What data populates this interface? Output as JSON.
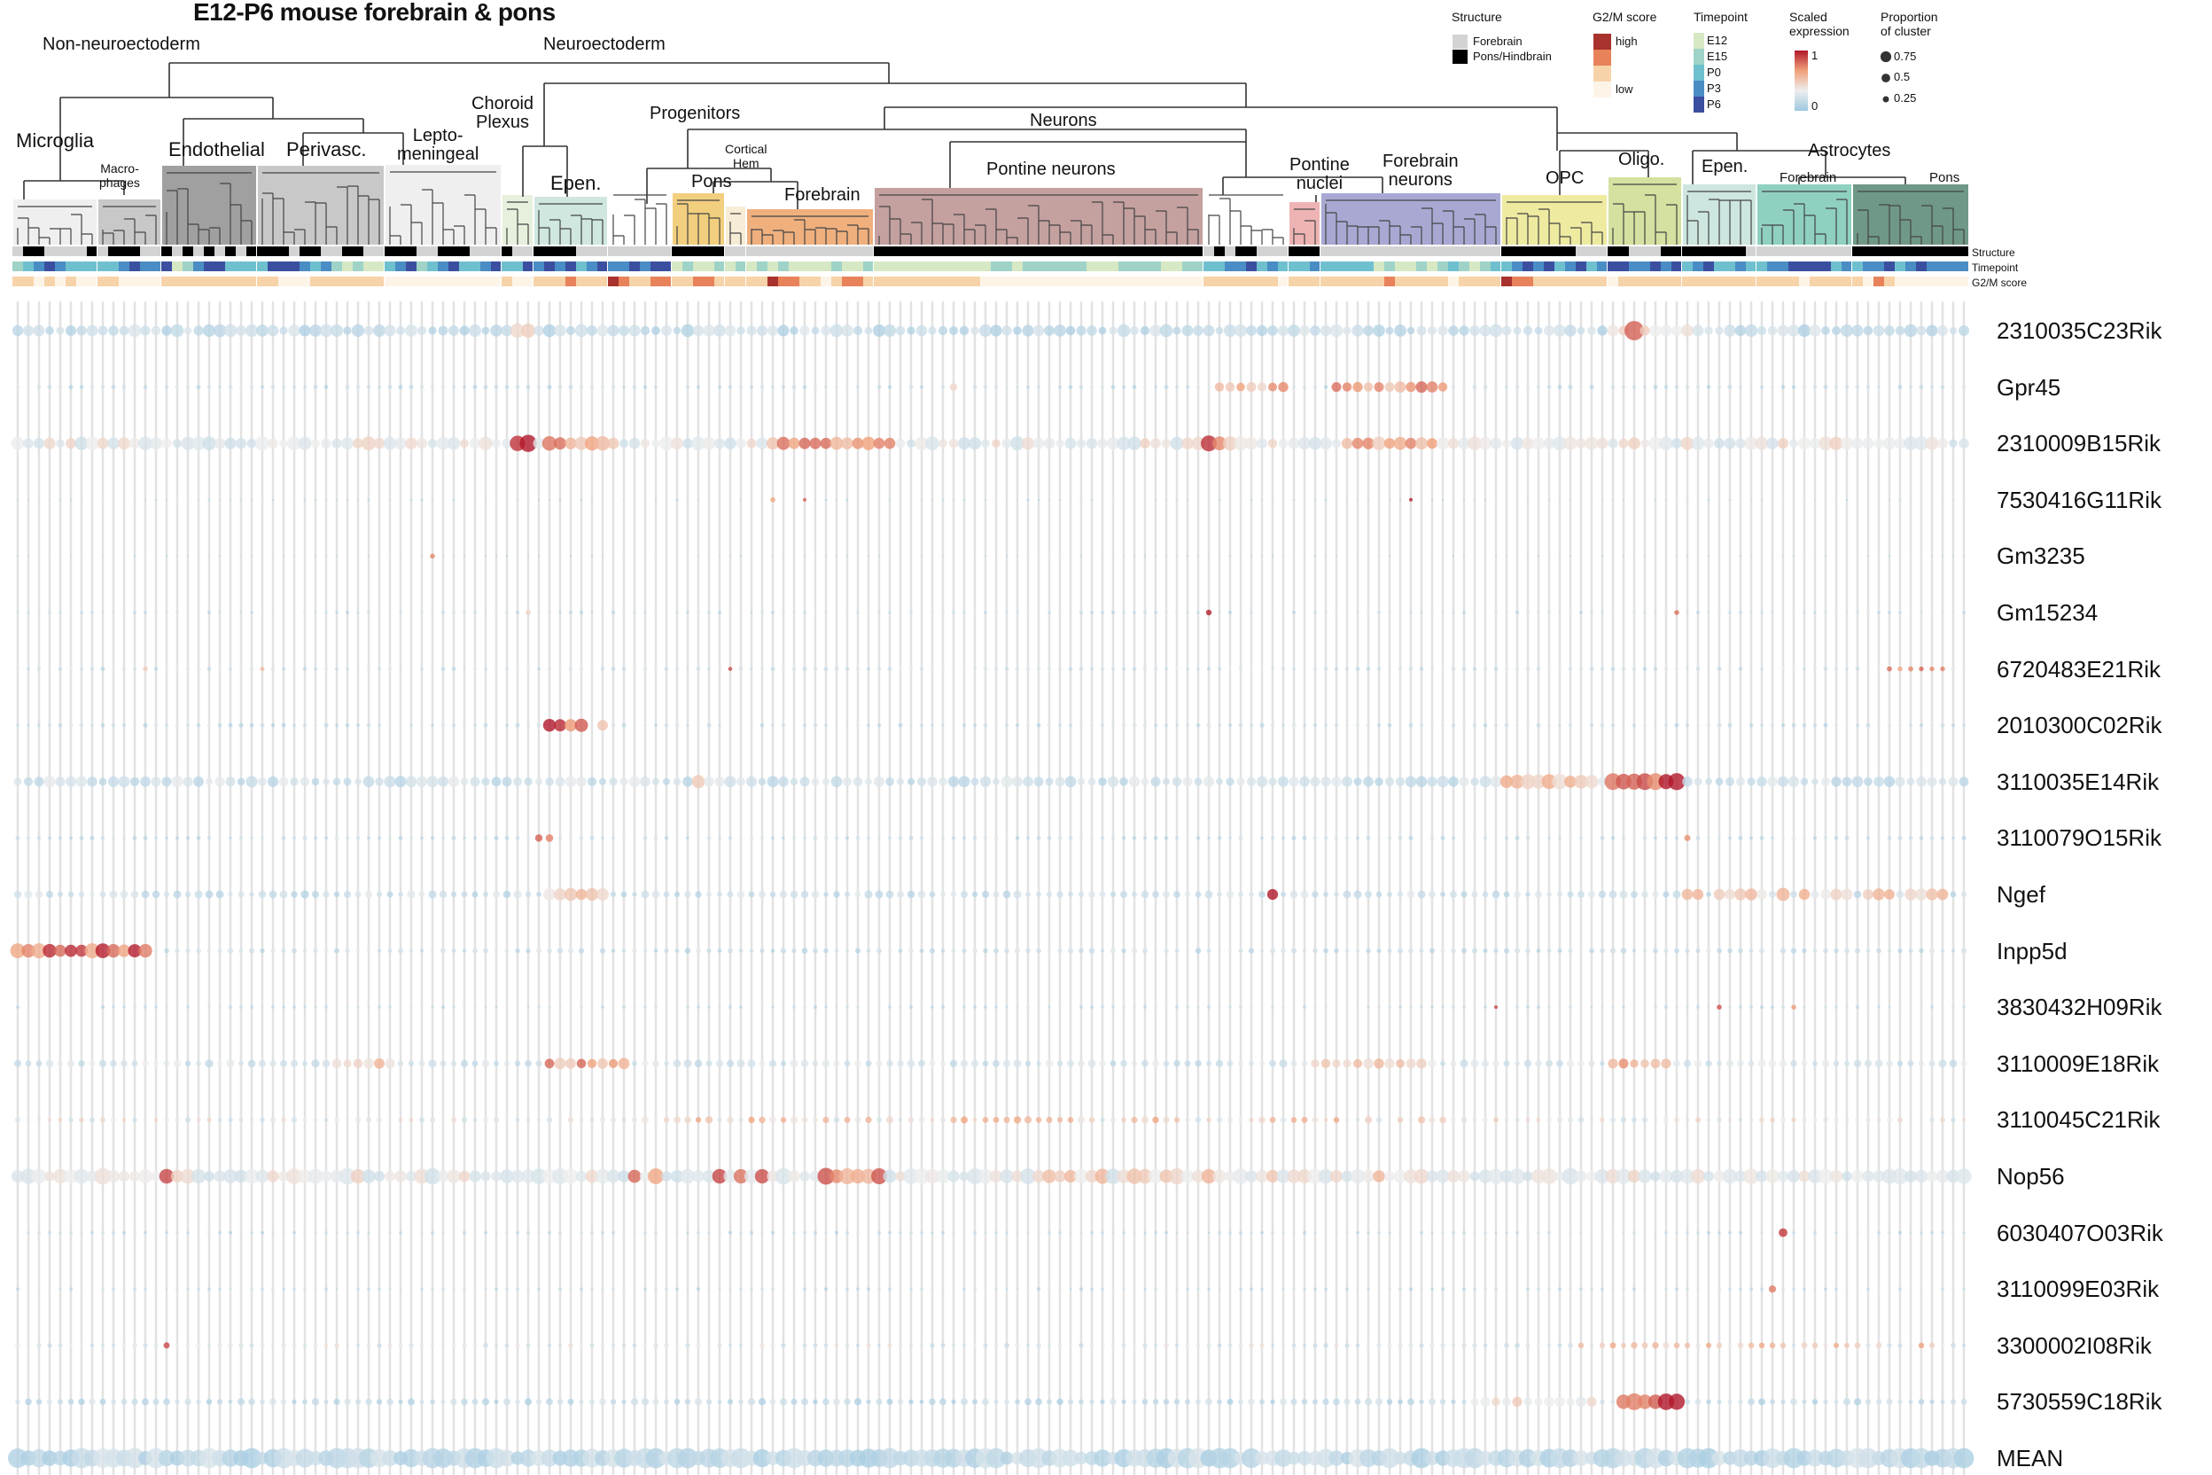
{
  "chart_data": {
    "type": "dot-heatmap",
    "title": "E12-P6 mouse forebrain & pons",
    "top_groups": [
      "Non-neuroectoderm",
      "Neuroectoderm"
    ],
    "mid_groups": {
      "progenitors": "Progenitors",
      "neurons": "Neurons",
      "astrocytes": "Astrocytes"
    },
    "clusters": [
      {
        "label": "Microglia",
        "color": "#efefef",
        "n": 8,
        "structure": "FPPFFFFP",
        "timepoint": "12343222",
        "g2m": "11010100"
      },
      {
        "label": "Macro-\nphages",
        "color": "#c8c8c8",
        "n": 6,
        "structure": "FPPPFF",
        "timepoint": "223433",
        "g2m": "110000"
      },
      {
        "label": "Endothelial",
        "color": "#a0a0a0",
        "n": 9,
        "structure": "PFPFPFPFP",
        "timepoint": "401344222",
        "g2m": "111111111"
      },
      {
        "label": "Perivasc.",
        "color": "#c8c8c8",
        "n": 12,
        "structure": "PPPFPPFFPPFF",
        "timepoint": "244432310100",
        "g2m": "110001111111"
      },
      {
        "label": "Lepto-\nmeningeal",
        "color": "#efefef",
        "n": 11,
        "structure": "PPPFFPPPFFF",
        "timepoint": "23412342234",
        "g2m": "00000000000"
      },
      {
        "label": "Choroid\nPlexus",
        "color": "#e6f0dc",
        "n": 3,
        "structure": "PFF",
        "timepoint": "224",
        "g2m": "100"
      },
      {
        "label": "Epen.",
        "color": "#cfe7df",
        "n": 7,
        "structure": "PPPPFFF",
        "timepoint": "3434234",
        "g2m": "1112111"
      },
      {
        "label": "",
        "color": "",
        "n": 6,
        "structure": "FFFFFF",
        "timepoint": "334344",
        "g2m": "321122"
      },
      {
        "label": "Pons",
        "color": "#f2cf7e",
        "n": 5,
        "structure": "PPPPP",
        "timepoint": "01001",
        "g2m": "11221"
      },
      {
        "label": "Cortical\nHem",
        "color": "#f7ecd6",
        "n": 2,
        "structure": "FF",
        "timepoint": "01",
        "g2m": "11"
      },
      {
        "label": "Forebrain",
        "color": "#efb07e",
        "n": 12,
        "structure": "FFFFFFFFFFFF",
        "timepoint": "010100001001",
        "g2m": "113221101221"
      },
      {
        "label": "Pontine neurons",
        "color": "#c4a09f",
        "n": 31,
        "structure": "PPPPPPPPPPPPPPPPPPPPPPPPPPPPPPP",
        "timepoint": "0000000000011011111100011110011",
        "g2m": "1111111111000000000000000000000"
      },
      {
        "label": "",
        "color": "",
        "n": 8,
        "structure": "FPFPPFFF",
        "timepoint": "22334232",
        "g2m": "11111110"
      },
      {
        "label": "Pontine\nnuclei",
        "color": "#eeb4b4",
        "n": 3,
        "structure": "PPP",
        "timepoint": "223",
        "g2m": "111"
      },
      {
        "label": "Forebrain\nneurons",
        "color": "#a8a8d3",
        "n": 17,
        "structure": "FFFFFFFFFFFFFFFFF",
        "timepoint": "22222010010121012",
        "g2m": "11111121111101111"
      },
      {
        "label": "OPC",
        "color": "#eeeaa0",
        "n": 10,
        "structure": "PPPPPPPFFF",
        "timepoint": "2343423423",
        "g2m": "3221111111"
      },
      {
        "label": "Oligo.",
        "color": "#d4e1a0",
        "n": 7,
        "structure": "PPFFFPP",
        "timepoint": "4433434",
        "g2m": "0111111"
      },
      {
        "label": "Epen.",
        "color": "#cde6df",
        "n": 7,
        "structure": "PPPPPPF",
        "timepoint": "2342232",
        "g2m": "1111111"
      },
      {
        "label": "Forebrain",
        "color": "#8fd0c0",
        "n": 9,
        "structure": "FFFFFFFFF",
        "timepoint": "233444423",
        "g2m": "111101111"
      },
      {
        "label": "Pons",
        "color": "#6f9887",
        "n": 11,
        "structure": "PPPPPPPPPPP",
        "timepoint": "23342343333",
        "g2m": "10210000000"
      }
    ],
    "annotation_rows": [
      "Structure",
      "Timepoint",
      "G2/M score"
    ],
    "genes": [
      {
        "name": "2310035C23Rik",
        "base": [
          0.25,
          0.25
        ],
        "spots": [
          [
            47,
            48,
            0.6,
            0.45
          ],
          [
            150,
            157,
            0.55,
            0.3
          ],
          [
            152,
            152,
            0.95,
            0.7
          ]
        ]
      },
      {
        "name": "Gpr45",
        "base": [
          0.3,
          0.03
        ],
        "spots": [
          [
            124,
            134,
            0.75,
            0.25
          ],
          [
            88,
            88,
            0.7,
            0.15
          ],
          [
            113,
            119,
            0.7,
            0.2
          ]
        ]
      },
      {
        "name": "2310009B15Rik",
        "base": [
          0.45,
          0.3
        ],
        "spots": [
          [
            47,
            48,
            0.95,
            0.6
          ],
          [
            50,
            56,
            0.75,
            0.4
          ],
          [
            71,
            82,
            0.75,
            0.35
          ],
          [
            112,
            113,
            0.85,
            0.5
          ],
          [
            125,
            133,
            0.7,
            0.35
          ]
        ]
      },
      {
        "name": "7530416G11Rik",
        "base": [
          0.3,
          0.01
        ],
        "spots": [
          [
            71,
            71,
            0.9,
            0.05
          ],
          [
            74,
            74,
            0.9,
            0.04
          ],
          [
            131,
            131,
            0.9,
            0.04
          ]
        ]
      },
      {
        "name": "Gm3235",
        "base": [
          0.3,
          0.005
        ],
        "spots": [
          [
            39,
            39,
            0.95,
            0.05
          ]
        ]
      },
      {
        "name": "Gm15234",
        "base": [
          0.3,
          0.02
        ],
        "spots": [
          [
            48,
            48,
            0.7,
            0.05
          ],
          [
            112,
            112,
            0.9,
            0.08
          ],
          [
            156,
            156,
            0.9,
            0.07
          ]
        ]
      },
      {
        "name": "6720483E21Rik",
        "base": [
          0.35,
          0.03
        ],
        "spots": [
          [
            12,
            12,
            0.7,
            0.05
          ],
          [
            23,
            23,
            0.8,
            0.04
          ],
          [
            67,
            67,
            0.8,
            0.05
          ],
          [
            176,
            181,
            0.75,
            0.06
          ]
        ]
      },
      {
        "name": "2010300C02Rik",
        "base": [
          0.3,
          0.03
        ],
        "spots": [
          [
            50,
            53,
            0.9,
            0.35
          ],
          [
            55,
            55,
            0.6,
            0.3
          ]
        ]
      },
      {
        "name": "3110035E14Rik",
        "base": [
          0.3,
          0.2
        ],
        "spots": [
          [
            64,
            64,
            0.7,
            0.45
          ],
          [
            140,
            148,
            0.65,
            0.45
          ],
          [
            150,
            156,
            0.95,
            0.55
          ]
        ]
      },
      {
        "name": "3110079O15Rik",
        "base": [
          0.3,
          0.03
        ],
        "spots": [
          [
            49,
            49,
            0.8,
            0.1
          ],
          [
            50,
            50,
            0.95,
            0.15
          ],
          [
            157,
            157,
            0.85,
            0.1
          ]
        ]
      },
      {
        "name": "Ngef",
        "base": [
          0.3,
          0.1
        ],
        "spots": [
          [
            50,
            55,
            0.65,
            0.35
          ],
          [
            118,
            118,
            0.95,
            0.35
          ],
          [
            157,
            181,
            0.62,
            0.3
          ],
          [
            166,
            166,
            0.85,
            0.35
          ]
        ]
      },
      {
        "name": "Inpp5d",
        "base": [
          0.3,
          0.05
        ],
        "spots": [
          [
            0,
            12,
            0.88,
            0.45
          ]
        ]
      },
      {
        "name": "3830432H09Rik",
        "base": [
          0.3,
          0.02
        ],
        "spots": [
          [
            139,
            139,
            0.8,
            0.04
          ],
          [
            160,
            160,
            0.85,
            0.05
          ],
          [
            167,
            167,
            0.85,
            0.06
          ]
        ]
      },
      {
        "name": "3110009E18Rik",
        "base": [
          0.35,
          0.1
        ],
        "spots": [
          [
            30,
            35,
            0.6,
            0.2
          ],
          [
            50,
            57,
            0.75,
            0.25
          ],
          [
            122,
            133,
            0.6,
            0.2
          ],
          [
            150,
            155,
            0.7,
            0.2
          ]
        ]
      },
      {
        "name": "3110045C21Rik",
        "base": [
          0.45,
          0.05
        ],
        "spots": [
          [
            55,
            135,
            0.65,
            0.1
          ]
        ]
      },
      {
        "name": "Nop56",
        "base": [
          0.45,
          0.4
        ],
        "spots": [
          [
            56,
            82,
            0.82,
            0.55
          ],
          [
            93,
            130,
            0.6,
            0.45
          ],
          [
            14,
            14,
            0.8,
            0.45
          ]
        ]
      },
      {
        "name": "6030407O03Rik",
        "base": [
          0.3,
          0.02
        ],
        "spots": [
          [
            166,
            166,
            0.95,
            0.15
          ]
        ]
      },
      {
        "name": "3110099E03Rik",
        "base": [
          0.3,
          0.02
        ],
        "spots": [
          [
            165,
            165,
            0.95,
            0.1
          ]
        ]
      },
      {
        "name": "3300002I08Rik",
        "base": [
          0.4,
          0.04
        ],
        "spots": [
          [
            14,
            14,
            0.95,
            0.1
          ],
          [
            147,
            181,
            0.65,
            0.08
          ]
        ]
      },
      {
        "name": "5730559C18Rik",
        "base": [
          0.25,
          0.08
        ],
        "spots": [
          [
            137,
            148,
            0.55,
            0.2
          ],
          [
            151,
            156,
            0.95,
            0.55
          ]
        ]
      },
      {
        "name": "MEAN",
        "base": [
          0.22,
          0.7
        ],
        "spots": []
      }
    ],
    "legend": {
      "structure": {
        "title": "Structure",
        "items": [
          {
            "label": "Forebrain",
            "color": "#d3d3d3"
          },
          {
            "label": "Pons/Hindbrain",
            "color": "#000000"
          }
        ]
      },
      "g2m": {
        "title": "G2/M score",
        "high": "high",
        "low": "low",
        "colors": [
          "#a8322d",
          "#e8825a",
          "#f6d3a9",
          "#fdf4e8"
        ]
      },
      "timepoint": {
        "title": "Timepoint",
        "items": [
          {
            "label": "E12",
            "color": "#d6e8c4"
          },
          {
            "label": "E15",
            "color": "#9fd3c7"
          },
          {
            "label": "P0",
            "color": "#6fc0cf"
          },
          {
            "label": "P3",
            "color": "#4a8dc4"
          },
          {
            "label": "P6",
            "color": "#3b4fa0"
          }
        ]
      },
      "expression": {
        "title": "Scaled\nexpression",
        "max": "1",
        "min": "0",
        "colors": [
          "#b2182b",
          "#f0a07a",
          "#eeeeee",
          "#9ec8e0"
        ]
      },
      "proportion": {
        "title": "Proportion\nof cluster",
        "items": [
          {
            "label": "0.75",
            "value": 0.75
          },
          {
            "label": "0.5",
            "value": 0.5
          },
          {
            "label": "0.25",
            "value": 0.25
          }
        ]
      }
    }
  }
}
